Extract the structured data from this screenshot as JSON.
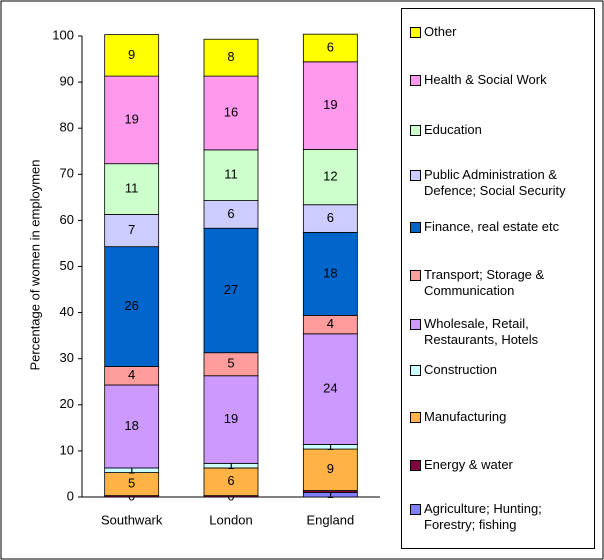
{
  "chart_data": {
    "type": "stacked_bar",
    "ylabel": "Percentage of women in employmen",
    "categories": [
      "Southwark",
      "London",
      "England"
    ],
    "ylim": [
      0,
      100
    ],
    "yticks": [
      0,
      10,
      20,
      30,
      40,
      50,
      60,
      70,
      80,
      90,
      100
    ],
    "series": [
      {
        "name": "Agriculture; Hunting; Forestry; fishing",
        "color": "#8080ff",
        "values": [
          0,
          0,
          1
        ]
      },
      {
        "name": "Energy & water",
        "color": "#800040",
        "values": [
          0.3,
          0.3,
          0.4
        ]
      },
      {
        "name": "Manufacturing",
        "color": "#ffb347",
        "values": [
          5,
          6,
          9
        ]
      },
      {
        "name": "Construction",
        "color": "#ccffff",
        "values": [
          1,
          1,
          1
        ]
      },
      {
        "name": "Wholesale, Retail, Restaurants, Hotels",
        "color": "#cc99ff",
        "values": [
          18,
          19,
          24
        ]
      },
      {
        "name": "Transport; Storage & Communication",
        "color": "#ff9c9c",
        "values": [
          4,
          5,
          4
        ]
      },
      {
        "name": "Finance, real estate etc",
        "color": "#0066cc",
        "values": [
          26,
          27,
          18
        ]
      },
      {
        "name": "Public Administration & Defence; Social Security",
        "color": "#ccccff",
        "values": [
          7,
          6,
          6
        ]
      },
      {
        "name": "Education",
        "color": "#ccffcc",
        "values": [
          11,
          11,
          12
        ]
      },
      {
        "name": "Health & Social Work",
        "color": "#ff99ee",
        "values": [
          19,
          16,
          19
        ]
      },
      {
        "name": "Other",
        "color": "#ffff00",
        "values": [
          9,
          8,
          6
        ]
      }
    ]
  }
}
